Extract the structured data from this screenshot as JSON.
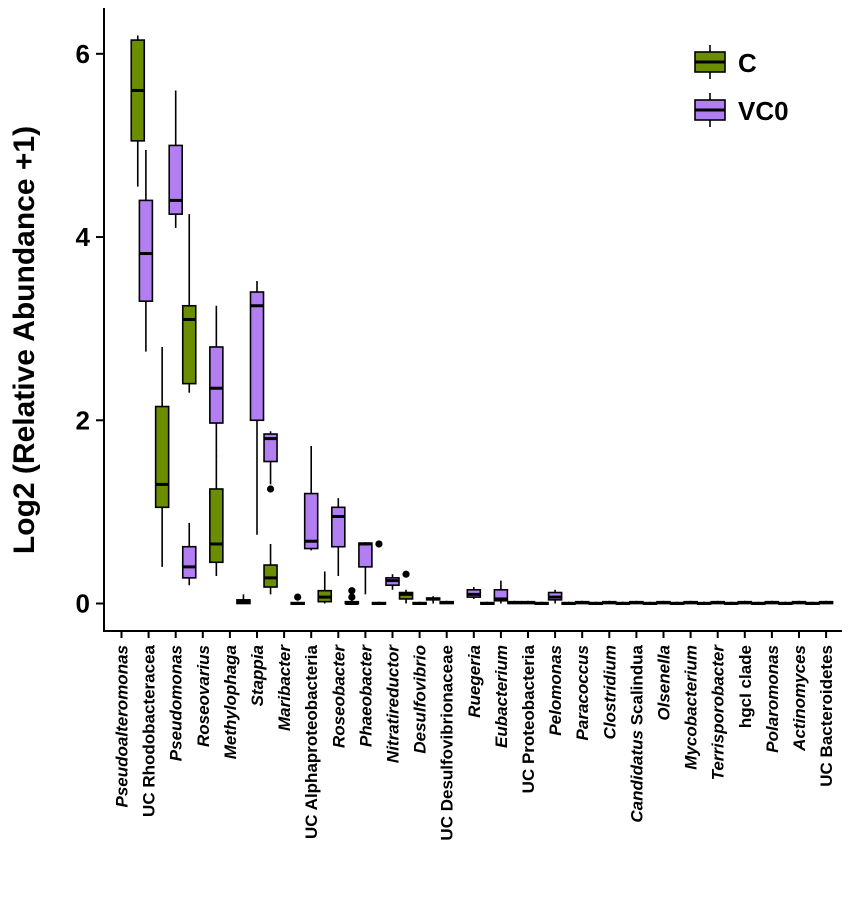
{
  "chart_data": {
    "type": "boxplot",
    "ylabel": "Log2 (Relative Abundance +1)",
    "xlabel": "",
    "ylim": [
      -0.3,
      6.5
    ],
    "yticks": [
      0,
      2,
      4,
      6
    ],
    "legend": {
      "placement": "top-right",
      "entries": [
        {
          "name": "C",
          "color": "#6b8e00"
        },
        {
          "name": "VC0",
          "color": "#b27ff3"
        }
      ]
    },
    "series": [
      {
        "name": "C",
        "color": "#6b8e00"
      },
      {
        "name": "VC0",
        "color": "#b27ff3"
      }
    ],
    "categories": [
      {
        "label": "Pseudoalteromonas",
        "italic": true
      },
      {
        "label": "UC Rhodobacteracea",
        "italic": false
      },
      {
        "label": "Pseudomonas",
        "italic": true
      },
      {
        "label": "Roseovarius",
        "italic": true
      },
      {
        "label": "Methylophaga",
        "italic": true
      },
      {
        "label": "Stappia",
        "italic": true
      },
      {
        "label": "Maribacter",
        "italic": true
      },
      {
        "label": "UC Alphaproteobacteria",
        "italic": false
      },
      {
        "label": "Roseobacter",
        "italic": true
      },
      {
        "label": "Phaeobacter",
        "italic": true
      },
      {
        "label": "Nitratireductor",
        "italic": true
      },
      {
        "label": "Desulfovibrio",
        "italic": true
      },
      {
        "label": "UC Desulfovibrionaceae",
        "italic": false
      },
      {
        "label": "Ruegeria",
        "italic": true
      },
      {
        "label": "Eubacterium",
        "italic": true
      },
      {
        "label": "UC Proteobacteria",
        "italic": false
      },
      {
        "label": "Pelomonas",
        "italic": true
      },
      {
        "label": "Paracoccus",
        "italic": true
      },
      {
        "label": "Clostridium",
        "italic": true
      },
      {
        "label": "Candidatus Scalindua",
        "italic": "partial",
        "italicPart": "Candidatus",
        "plainPart": " Scalindua"
      },
      {
        "label": "Olsenella",
        "italic": true
      },
      {
        "label": "Mycobacterium",
        "italic": true
      },
      {
        "label": "Terrisporobacter",
        "italic": true
      },
      {
        "label": "hgcI clade",
        "italic": false
      },
      {
        "label": "Polaromonas",
        "italic": true
      },
      {
        "label": "Actinomyces",
        "italic": true
      },
      {
        "label": "UC Bacteroidetes",
        "italic": false
      }
    ],
    "boxes": [
      {
        "series": "C",
        "x": 0.6,
        "min": 4.55,
        "q1": 5.05,
        "median": 5.6,
        "q3": 6.15,
        "max": 6.2,
        "outliers": []
      },
      {
        "series": "VC0",
        "x": 0.9,
        "min": 2.75,
        "q1": 3.3,
        "median": 3.82,
        "q3": 4.4,
        "max": 4.95,
        "outliers": []
      },
      {
        "series": "C",
        "x": 1.5,
        "min": 0.4,
        "q1": 1.05,
        "median": 1.3,
        "q3": 2.15,
        "max": 2.8,
        "outliers": []
      },
      {
        "series": "VC0",
        "x": 2.0,
        "min": 4.1,
        "q1": 4.25,
        "median": 4.4,
        "q3": 5.0,
        "max": 5.6,
        "outliers": []
      },
      {
        "series": "C",
        "x": 2.5,
        "min": 2.3,
        "q1": 2.4,
        "median": 3.1,
        "q3": 3.25,
        "max": 4.25,
        "outliers": []
      },
      {
        "series": "VC0",
        "x": 2.5,
        "min": 0.2,
        "q1": 0.28,
        "median": 0.4,
        "q3": 0.62,
        "max": 0.88,
        "outliers": []
      },
      {
        "series": "VC0",
        "x": 3.5,
        "min": 1.6,
        "q1": 1.97,
        "median": 2.35,
        "q3": 2.8,
        "max": 3.25,
        "outliers": []
      },
      {
        "series": "C",
        "x": 3.5,
        "min": 0.3,
        "q1": 0.45,
        "median": 0.65,
        "q3": 1.25,
        "max": 1.62,
        "outliers": []
      },
      {
        "series": "C",
        "x": 4.5,
        "min": 0.0,
        "q1": 0.0,
        "median": 0.02,
        "q3": 0.04,
        "max": 0.1,
        "outliers": []
      },
      {
        "series": "VC0",
        "x": 5.0,
        "min": 0.75,
        "q1": 2.0,
        "median": 3.25,
        "q3": 3.4,
        "max": 3.52,
        "outliers": []
      },
      {
        "series": "C",
        "x": 5.5,
        "min": 0.1,
        "q1": 0.18,
        "median": 0.28,
        "q3": 0.42,
        "max": 0.65,
        "outliers": []
      },
      {
        "series": "VC0",
        "x": 5.5,
        "min": 1.3,
        "q1": 1.55,
        "median": 1.8,
        "q3": 1.85,
        "max": 1.88,
        "outliers": [
          1.25
        ]
      },
      {
        "series": "C",
        "x": 6.5,
        "min": 0.0,
        "q1": 0.0,
        "median": 0.0,
        "q3": 0.01,
        "max": 0.02,
        "outliers": [
          0.07
        ]
      },
      {
        "series": "VC0",
        "x": 7.0,
        "min": 0.58,
        "q1": 0.6,
        "median": 0.68,
        "q3": 1.2,
        "max": 1.72,
        "outliers": []
      },
      {
        "series": "C",
        "x": 7.5,
        "min": 0.0,
        "q1": 0.02,
        "median": 0.07,
        "q3": 0.14,
        "max": 0.35,
        "outliers": []
      },
      {
        "series": "VC0",
        "x": 8.0,
        "min": 0.3,
        "q1": 0.62,
        "median": 0.95,
        "q3": 1.05,
        "max": 1.15,
        "outliers": []
      },
      {
        "series": "C",
        "x": 8.5,
        "min": 0.0,
        "q1": 0.0,
        "median": 0.0,
        "q3": 0.02,
        "max": 0.05,
        "outliers": [
          0.07,
          0.14
        ]
      },
      {
        "series": "VC0",
        "x": 9.0,
        "min": 0.1,
        "q1": 0.4,
        "median": 0.65,
        "q3": 0.66,
        "max": 0.67,
        "outliers": []
      },
      {
        "series": "C",
        "x": 9.5,
        "min": 0.0,
        "q1": 0.0,
        "median": 0.0,
        "q3": 0.01,
        "max": 0.02,
        "outliers": [
          0.65
        ]
      },
      {
        "series": "VC0",
        "x": 10.0,
        "min": 0.15,
        "q1": 0.2,
        "median": 0.25,
        "q3": 0.28,
        "max": 0.32,
        "outliers": []
      },
      {
        "series": "C",
        "x": 10.5,
        "min": 0.0,
        "q1": 0.05,
        "median": 0.1,
        "q3": 0.12,
        "max": 0.15,
        "outliers": [
          0.32
        ]
      },
      {
        "series": "VC0",
        "x": 11.0,
        "min": 0.0,
        "q1": 0.0,
        "median": 0.0,
        "q3": 0.01,
        "max": 0.02,
        "outliers": []
      },
      {
        "series": "C",
        "x": 11.5,
        "min": 0.0,
        "q1": 0.04,
        "median": 0.05,
        "q3": 0.06,
        "max": 0.08,
        "outliers": []
      },
      {
        "series": "VC0",
        "x": 12.0,
        "min": 0.0,
        "q1": 0.0,
        "median": 0.01,
        "q3": 0.02,
        "max": 0.03,
        "outliers": []
      },
      {
        "series": "VC0",
        "x": 13.0,
        "min": 0.05,
        "q1": 0.07,
        "median": 0.1,
        "q3": 0.15,
        "max": 0.18,
        "outliers": []
      },
      {
        "series": "C",
        "x": 13.5,
        "min": 0.0,
        "q1": 0.0,
        "median": 0.0,
        "q3": 0.01,
        "max": 0.02,
        "outliers": []
      },
      {
        "series": "VC0",
        "x": 14.0,
        "min": 0.0,
        "q1": 0.03,
        "median": 0.05,
        "q3": 0.15,
        "max": 0.25,
        "outliers": []
      },
      {
        "series": "C",
        "x": 14.5,
        "min": 0.0,
        "q1": 0.0,
        "median": 0.01,
        "q3": 0.02,
        "max": 0.03,
        "outliers": []
      },
      {
        "series": "VC0",
        "x": 15.0,
        "min": 0.0,
        "q1": 0.0,
        "median": 0.01,
        "q3": 0.02,
        "max": 0.03,
        "outliers": []
      },
      {
        "series": "C",
        "x": 15.5,
        "min": 0.0,
        "q1": 0.0,
        "median": 0.0,
        "q3": 0.01,
        "max": 0.02,
        "outliers": []
      },
      {
        "series": "VC0",
        "x": 16.0,
        "min": 0.0,
        "q1": 0.04,
        "median": 0.07,
        "q3": 0.12,
        "max": 0.15,
        "outliers": []
      },
      {
        "series": "C",
        "x": 16.5,
        "min": 0.0,
        "q1": 0.0,
        "median": 0.0,
        "q3": 0.01,
        "max": 0.02,
        "outliers": []
      },
      {
        "series": "VC0",
        "x": 17.0,
        "min": 0.0,
        "q1": 0.0,
        "median": 0.01,
        "q3": 0.02,
        "max": 0.03,
        "outliers": []
      },
      {
        "series": "C",
        "x": 17.5,
        "min": 0.0,
        "q1": 0.0,
        "median": 0.0,
        "q3": 0.01,
        "max": 0.02,
        "outliers": []
      },
      {
        "series": "VC0",
        "x": 18.0,
        "min": 0.0,
        "q1": 0.0,
        "median": 0.01,
        "q3": 0.02,
        "max": 0.03,
        "outliers": []
      },
      {
        "series": "C",
        "x": 18.5,
        "min": 0.0,
        "q1": 0.0,
        "median": 0.0,
        "q3": 0.01,
        "max": 0.02,
        "outliers": []
      },
      {
        "series": "VC0",
        "x": 19.0,
        "min": 0.0,
        "q1": 0.0,
        "median": 0.01,
        "q3": 0.02,
        "max": 0.03,
        "outliers": []
      },
      {
        "series": "C",
        "x": 19.5,
        "min": 0.0,
        "q1": 0.0,
        "median": 0.0,
        "q3": 0.01,
        "max": 0.02,
        "outliers": []
      },
      {
        "series": "VC0",
        "x": 20.0,
        "min": 0.0,
        "q1": 0.0,
        "median": 0.01,
        "q3": 0.02,
        "max": 0.03,
        "outliers": []
      },
      {
        "series": "C",
        "x": 20.5,
        "min": 0.0,
        "q1": 0.0,
        "median": 0.0,
        "q3": 0.01,
        "max": 0.02,
        "outliers": []
      },
      {
        "series": "VC0",
        "x": 21.0,
        "min": 0.0,
        "q1": 0.0,
        "median": 0.01,
        "q3": 0.02,
        "max": 0.03,
        "outliers": []
      },
      {
        "series": "C",
        "x": 21.5,
        "min": 0.0,
        "q1": 0.0,
        "median": 0.0,
        "q3": 0.01,
        "max": 0.02,
        "outliers": []
      },
      {
        "series": "VC0",
        "x": 22.0,
        "min": 0.0,
        "q1": 0.0,
        "median": 0.01,
        "q3": 0.02,
        "max": 0.03,
        "outliers": []
      },
      {
        "series": "C",
        "x": 22.5,
        "min": 0.0,
        "q1": 0.0,
        "median": 0.0,
        "q3": 0.01,
        "max": 0.02,
        "outliers": []
      },
      {
        "series": "VC0",
        "x": 23.0,
        "min": 0.0,
        "q1": 0.0,
        "median": 0.01,
        "q3": 0.02,
        "max": 0.03,
        "outliers": []
      },
      {
        "series": "C",
        "x": 23.5,
        "min": 0.0,
        "q1": 0.0,
        "median": 0.0,
        "q3": 0.01,
        "max": 0.02,
        "outliers": []
      },
      {
        "series": "VC0",
        "x": 24.0,
        "min": 0.0,
        "q1": 0.0,
        "median": 0.01,
        "q3": 0.02,
        "max": 0.03,
        "outliers": []
      },
      {
        "series": "C",
        "x": 24.5,
        "min": 0.0,
        "q1": 0.0,
        "median": 0.0,
        "q3": 0.01,
        "max": 0.02,
        "outliers": []
      },
      {
        "series": "VC0",
        "x": 25.0,
        "min": 0.0,
        "q1": 0.0,
        "median": 0.01,
        "q3": 0.02,
        "max": 0.03,
        "outliers": []
      },
      {
        "series": "C",
        "x": 25.5,
        "min": 0.0,
        "q1": 0.0,
        "median": 0.0,
        "q3": 0.01,
        "max": 0.02,
        "outliers": []
      },
      {
        "series": "VC0",
        "x": 26.0,
        "min": 0.0,
        "q1": 0.0,
        "median": 0.01,
        "q3": 0.02,
        "max": 0.03,
        "outliers": []
      }
    ]
  }
}
